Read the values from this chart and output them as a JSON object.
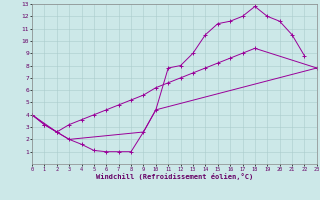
{
  "xlabel": "Windchill (Refroidissement éolien,°C)",
  "xlim": [
    0,
    23
  ],
  "ylim": [
    0,
    13
  ],
  "xticks": [
    0,
    1,
    2,
    3,
    4,
    5,
    6,
    7,
    8,
    9,
    10,
    11,
    12,
    13,
    14,
    15,
    16,
    17,
    18,
    19,
    20,
    21,
    22,
    23
  ],
  "yticks": [
    1,
    2,
    3,
    4,
    5,
    6,
    7,
    8,
    9,
    10,
    11,
    12,
    13
  ],
  "bg_color": "#cce8e8",
  "grid_color": "#aacccc",
  "line_color": "#990099",
  "line1_x": [
    0,
    1,
    2,
    3,
    4,
    5,
    6,
    7,
    8,
    9,
    10,
    11,
    12,
    13,
    14,
    15,
    16,
    17,
    18,
    19,
    20,
    21,
    22
  ],
  "line1_y": [
    4.0,
    3.2,
    2.6,
    2.0,
    1.6,
    1.1,
    1.0,
    1.0,
    1.0,
    2.6,
    4.4,
    7.8,
    8.0,
    9.0,
    10.5,
    11.4,
    11.6,
    12.0,
    12.8,
    12.0,
    11.6,
    10.5,
    8.8
  ],
  "line2_x": [
    0,
    1,
    2,
    3,
    4,
    5,
    6,
    7,
    8,
    9,
    10,
    11,
    12,
    13,
    14,
    15,
    16,
    17,
    18,
    23
  ],
  "line2_y": [
    4.0,
    3.2,
    2.6,
    3.2,
    3.6,
    4.0,
    4.4,
    4.8,
    5.2,
    5.6,
    6.2,
    6.6,
    7.0,
    7.4,
    7.8,
    8.2,
    8.6,
    9.0,
    9.4,
    7.8
  ],
  "line3_x": [
    0,
    2,
    3,
    9,
    10,
    23
  ],
  "line3_y": [
    4.0,
    2.6,
    2.0,
    2.6,
    4.4,
    7.8
  ]
}
